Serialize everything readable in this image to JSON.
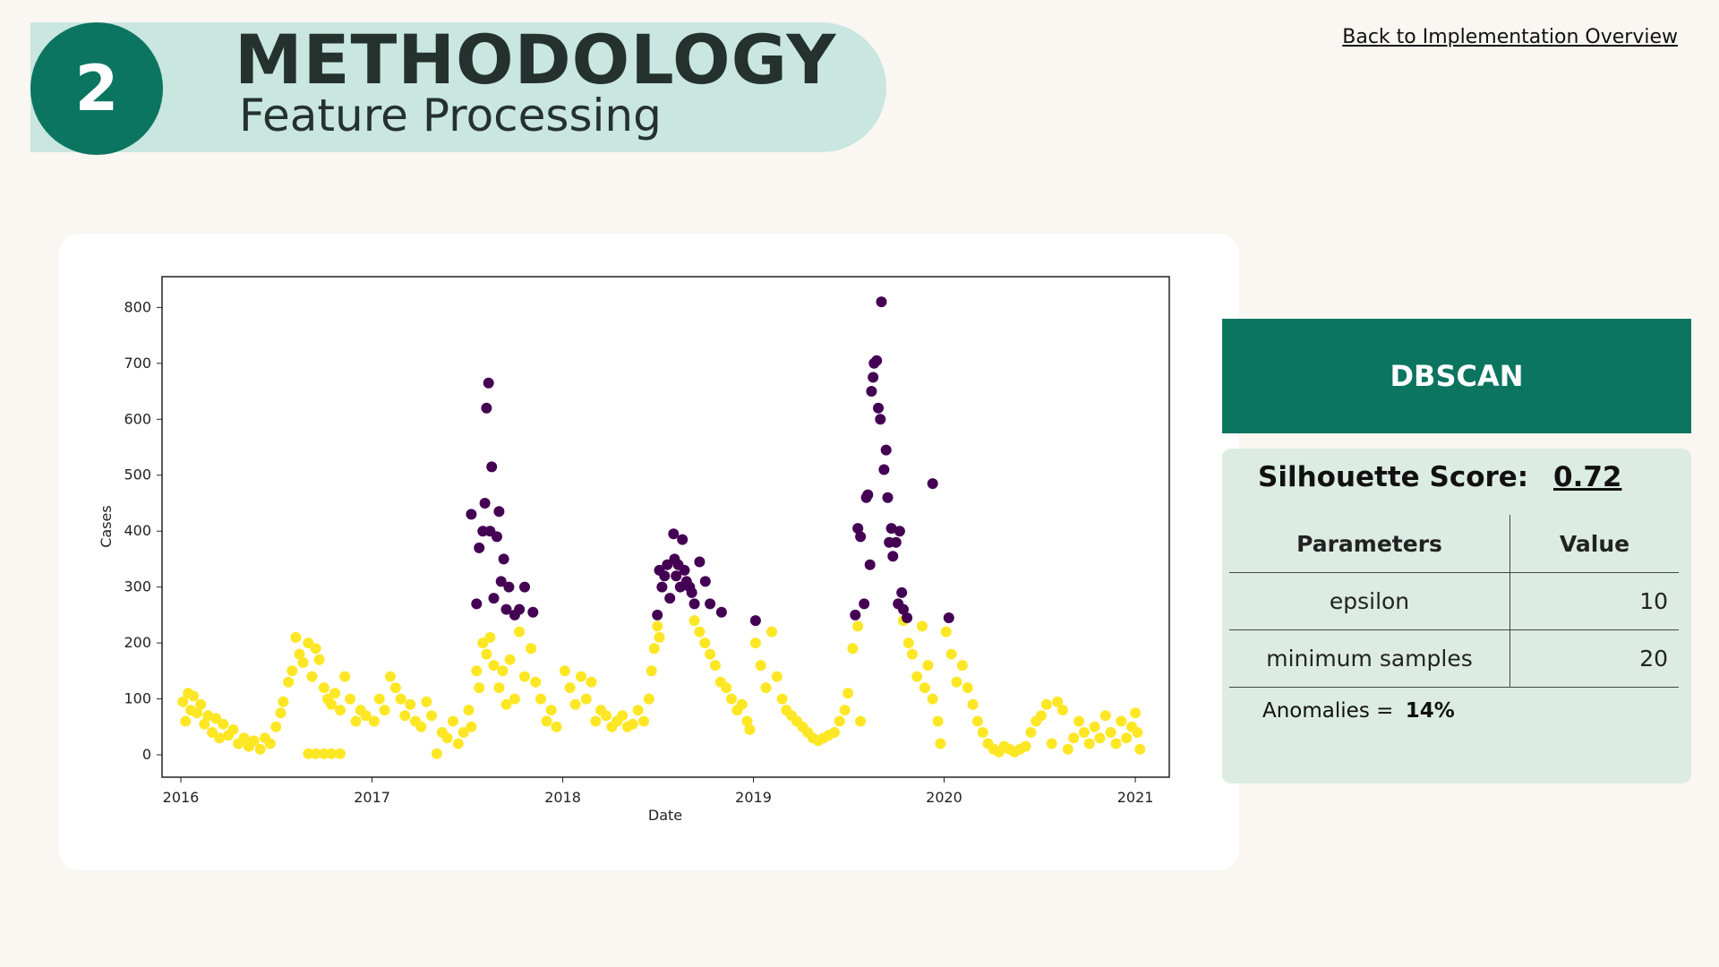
{
  "header": {
    "step_number": "2",
    "title": "METHODOLOGY",
    "subtitle": "Feature Processing",
    "back_link": "Back to Implementation Overview"
  },
  "model_panel": {
    "model_name": "DBSCAN",
    "silhouette_label": "Silhouette Score:",
    "silhouette_value": "0.72",
    "table_headers": [
      "Parameters",
      "Value"
    ],
    "parameters": [
      {
        "name": "epsilon",
        "value": "10"
      },
      {
        "name": "minimum samples",
        "value": "20"
      }
    ],
    "anomalies_label": "Anomalies =",
    "anomalies_value": "14%"
  },
  "colors": {
    "accent": "#0b7560",
    "header_bg": "#c9e6e0",
    "panel_bg": "#dcece2",
    "normal_cluster": "#fde725",
    "anomaly_cluster": "#440154"
  },
  "chart_data": {
    "type": "scatter",
    "title": "",
    "xlabel": "Date",
    "ylabel": "Cases",
    "xlim": [
      "2015-11-26",
      "2021-03-07"
    ],
    "ylim": [
      -40,
      855
    ],
    "x_ticks": [
      "2016",
      "2017",
      "2018",
      "2019",
      "2020",
      "2021"
    ],
    "y_ticks": [
      "0",
      "100",
      "200",
      "300",
      "400",
      "500",
      "600",
      "700",
      "800"
    ],
    "grid": false,
    "legend": "none",
    "series": [
      {
        "label_value": 1,
        "color": "#fde725",
        "points": [
          [
            "2016-01-05",
            95
          ],
          [
            "2016-01-10",
            60
          ],
          [
            "2016-01-15",
            110
          ],
          [
            "2016-01-20",
            80
          ],
          [
            "2016-01-25",
            105
          ],
          [
            "2016-02-01",
            75
          ],
          [
            "2016-02-08",
            90
          ],
          [
            "2016-02-15",
            55
          ],
          [
            "2016-02-22",
            70
          ],
          [
            "2016-03-01",
            40
          ],
          [
            "2016-03-08",
            65
          ],
          [
            "2016-03-15",
            30
          ],
          [
            "2016-03-22",
            55
          ],
          [
            "2016-04-01",
            35
          ],
          [
            "2016-04-10",
            45
          ],
          [
            "2016-04-20",
            20
          ],
          [
            "2016-05-01",
            30
          ],
          [
            "2016-05-10",
            15
          ],
          [
            "2016-05-20",
            25
          ],
          [
            "2016-06-01",
            10
          ],
          [
            "2016-06-10",
            30
          ],
          [
            "2016-06-20",
            20
          ],
          [
            "2016-07-01",
            50
          ],
          [
            "2016-07-10",
            75
          ],
          [
            "2016-07-15",
            95
          ],
          [
            "2016-07-25",
            130
          ],
          [
            "2016-08-01",
            150
          ],
          [
            "2016-08-08",
            210
          ],
          [
            "2016-08-15",
            180
          ],
          [
            "2016-08-22",
            165
          ],
          [
            "2016-09-01",
            200
          ],
          [
            "2016-09-08",
            140
          ],
          [
            "2016-09-15",
            190
          ],
          [
            "2016-09-22",
            170
          ],
          [
            "2016-10-01",
            120
          ],
          [
            "2016-10-08",
            100
          ],
          [
            "2016-10-15",
            90
          ],
          [
            "2016-10-22",
            110
          ],
          [
            "2016-11-01",
            80
          ],
          [
            "2016-11-10",
            140
          ],
          [
            "2016-11-20",
            100
          ],
          [
            "2016-12-01",
            60
          ],
          [
            "2016-12-10",
            80
          ],
          [
            "2016-12-20",
            70
          ],
          [
            "2016-09-01",
            2
          ],
          [
            "2016-09-15",
            2
          ],
          [
            "2016-10-01",
            2
          ],
          [
            "2016-10-15",
            2
          ],
          [
            "2016-11-01",
            2
          ],
          [
            "2017-01-05",
            60
          ],
          [
            "2017-01-15",
            100
          ],
          [
            "2017-01-25",
            80
          ],
          [
            "2017-02-05",
            140
          ],
          [
            "2017-02-15",
            120
          ],
          [
            "2017-02-25",
            100
          ],
          [
            "2017-03-05",
            70
          ],
          [
            "2017-03-15",
            90
          ],
          [
            "2017-03-25",
            60
          ],
          [
            "2017-04-05",
            50
          ],
          [
            "2017-04-15",
            95
          ],
          [
            "2017-04-25",
            70
          ],
          [
            "2017-05-05",
            2
          ],
          [
            "2017-05-15",
            40
          ],
          [
            "2017-05-25",
            30
          ],
          [
            "2017-06-05",
            60
          ],
          [
            "2017-06-15",
            20
          ],
          [
            "2017-06-25",
            40
          ],
          [
            "2017-07-05",
            80
          ],
          [
            "2017-07-10",
            50
          ],
          [
            "2017-07-20",
            150
          ],
          [
            "2017-07-25",
            120
          ],
          [
            "2017-08-01",
            200
          ],
          [
            "2017-08-08",
            180
          ],
          [
            "2017-08-15",
            210
          ],
          [
            "2017-08-22",
            160
          ],
          [
            "2017-09-01",
            120
          ],
          [
            "2017-09-08",
            150
          ],
          [
            "2017-09-15",
            90
          ],
          [
            "2017-09-22",
            170
          ],
          [
            "2017-10-01",
            100
          ],
          [
            "2017-10-10",
            220
          ],
          [
            "2017-10-20",
            140
          ],
          [
            "2017-11-01",
            190
          ],
          [
            "2017-11-10",
            130
          ],
          [
            "2017-11-20",
            100
          ],
          [
            "2017-12-01",
            60
          ],
          [
            "2017-12-10",
            80
          ],
          [
            "2017-12-20",
            50
          ],
          [
            "2018-01-05",
            150
          ],
          [
            "2018-01-15",
            120
          ],
          [
            "2018-01-25",
            90
          ],
          [
            "2018-02-05",
            140
          ],
          [
            "2018-02-15",
            100
          ],
          [
            "2018-02-25",
            130
          ],
          [
            "2018-03-05",
            60
          ],
          [
            "2018-03-15",
            80
          ],
          [
            "2018-03-25",
            70
          ],
          [
            "2018-04-05",
            50
          ],
          [
            "2018-04-15",
            60
          ],
          [
            "2018-04-25",
            70
          ],
          [
            "2018-05-05",
            50
          ],
          [
            "2018-05-15",
            55
          ],
          [
            "2018-05-25",
            80
          ],
          [
            "2018-06-05",
            60
          ],
          [
            "2018-06-15",
            100
          ],
          [
            "2018-06-20",
            150
          ],
          [
            "2018-06-25",
            190
          ],
          [
            "2018-07-01",
            230
          ],
          [
            "2018-07-05",
            210
          ],
          [
            "2018-09-10",
            240
          ],
          [
            "2018-09-20",
            220
          ],
          [
            "2018-09-30",
            200
          ],
          [
            "2018-10-10",
            180
          ],
          [
            "2018-10-20",
            160
          ],
          [
            "2018-10-30",
            130
          ],
          [
            "2018-11-10",
            120
          ],
          [
            "2018-11-20",
            100
          ],
          [
            "2018-12-01",
            80
          ],
          [
            "2018-12-10",
            90
          ],
          [
            "2018-12-20",
            60
          ],
          [
            "2018-12-25",
            45
          ],
          [
            "2019-01-05",
            200
          ],
          [
            "2019-01-15",
            160
          ],
          [
            "2019-01-25",
            120
          ],
          [
            "2019-02-05",
            220
          ],
          [
            "2019-02-15",
            140
          ],
          [
            "2019-02-25",
            100
          ],
          [
            "2019-03-05",
            80
          ],
          [
            "2019-03-15",
            70
          ],
          [
            "2019-03-25",
            60
          ],
          [
            "2019-04-05",
            50
          ],
          [
            "2019-04-15",
            40
          ],
          [
            "2019-04-25",
            30
          ],
          [
            "2019-05-05",
            25
          ],
          [
            "2019-05-15",
            30
          ],
          [
            "2019-05-25",
            35
          ],
          [
            "2019-06-05",
            40
          ],
          [
            "2019-06-15",
            60
          ],
          [
            "2019-06-25",
            80
          ],
          [
            "2019-07-01",
            110
          ],
          [
            "2019-07-10",
            190
          ],
          [
            "2019-07-20",
            230
          ],
          [
            "2019-07-25",
            60
          ],
          [
            "2019-10-15",
            240
          ],
          [
            "2019-10-25",
            200
          ],
          [
            "2019-11-01",
            180
          ],
          [
            "2019-11-10",
            140
          ],
          [
            "2019-11-20",
            230
          ],
          [
            "2019-11-25",
            120
          ],
          [
            "2019-12-01",
            160
          ],
          [
            "2019-12-10",
            100
          ],
          [
            "2019-12-20",
            60
          ],
          [
            "2019-12-25",
            20
          ],
          [
            "2020-01-05",
            220
          ],
          [
            "2020-01-15",
            180
          ],
          [
            "2020-01-25",
            130
          ],
          [
            "2020-02-05",
            160
          ],
          [
            "2020-02-15",
            120
          ],
          [
            "2020-02-25",
            90
          ],
          [
            "2020-03-05",
            60
          ],
          [
            "2020-03-15",
            40
          ],
          [
            "2020-03-25",
            20
          ],
          [
            "2020-04-05",
            10
          ],
          [
            "2020-04-15",
            5
          ],
          [
            "2020-04-25",
            15
          ],
          [
            "2020-05-05",
            10
          ],
          [
            "2020-05-15",
            5
          ],
          [
            "2020-05-25",
            10
          ],
          [
            "2020-06-05",
            15
          ],
          [
            "2020-06-15",
            40
          ],
          [
            "2020-06-25",
            60
          ],
          [
            "2020-07-05",
            70
          ],
          [
            "2020-07-15",
            90
          ],
          [
            "2020-07-25",
            20
          ],
          [
            "2020-08-05",
            95
          ],
          [
            "2020-08-15",
            80
          ],
          [
            "2020-08-25",
            10
          ],
          [
            "2020-09-05",
            30
          ],
          [
            "2020-09-15",
            60
          ],
          [
            "2020-09-25",
            40
          ],
          [
            "2020-10-05",
            20
          ],
          [
            "2020-10-15",
            50
          ],
          [
            "2020-10-25",
            30
          ],
          [
            "2020-11-05",
            70
          ],
          [
            "2020-11-15",
            40
          ],
          [
            "2020-11-25",
            20
          ],
          [
            "2020-12-05",
            60
          ],
          [
            "2020-12-15",
            30
          ],
          [
            "2020-12-25",
            50
          ],
          [
            "2021-01-01",
            75
          ],
          [
            "2021-01-05",
            40
          ],
          [
            "2021-01-10",
            10
          ]
        ]
      },
      {
        "label_value": 0,
        "color": "#440154",
        "points": [
          [
            "2017-07-10",
            430
          ],
          [
            "2017-07-20",
            270
          ],
          [
            "2017-07-25",
            370
          ],
          [
            "2017-08-01",
            400
          ],
          [
            "2017-08-05",
            450
          ],
          [
            "2017-08-08",
            620
          ],
          [
            "2017-08-12",
            665
          ],
          [
            "2017-08-15",
            400
          ],
          [
            "2017-08-18",
            515
          ],
          [
            "2017-08-22",
            280
          ],
          [
            "2017-08-28",
            390
          ],
          [
            "2017-09-01",
            435
          ],
          [
            "2017-09-05",
            310
          ],
          [
            "2017-09-10",
            350
          ],
          [
            "2017-09-15",
            260
          ],
          [
            "2017-09-20",
            300
          ],
          [
            "2017-10-01",
            250
          ],
          [
            "2017-10-10",
            260
          ],
          [
            "2017-10-20",
            300
          ],
          [
            "2017-11-05",
            255
          ],
          [
            "2018-07-01",
            250
          ],
          [
            "2018-07-05",
            330
          ],
          [
            "2018-07-10",
            300
          ],
          [
            "2018-07-15",
            320
          ],
          [
            "2018-07-20",
            340
          ],
          [
            "2018-07-25",
            280
          ],
          [
            "2018-08-01",
            395
          ],
          [
            "2018-08-03",
            350
          ],
          [
            "2018-08-06",
            320
          ],
          [
            "2018-08-10",
            340
          ],
          [
            "2018-08-14",
            300
          ],
          [
            "2018-08-18",
            385
          ],
          [
            "2018-08-22",
            330
          ],
          [
            "2018-08-26",
            310
          ],
          [
            "2018-09-01",
            300
          ],
          [
            "2018-09-05",
            290
          ],
          [
            "2018-09-10",
            270
          ],
          [
            "2018-09-20",
            345
          ],
          [
            "2018-10-01",
            310
          ],
          [
            "2018-10-10",
            270
          ],
          [
            "2018-11-01",
            255
          ],
          [
            "2019-01-05",
            240
          ],
          [
            "2019-07-15",
            250
          ],
          [
            "2019-07-20",
            405
          ],
          [
            "2019-07-25",
            390
          ],
          [
            "2019-08-01",
            270
          ],
          [
            "2019-08-05",
            460
          ],
          [
            "2019-08-08",
            465
          ],
          [
            "2019-08-12",
            340
          ],
          [
            "2019-08-15",
            650
          ],
          [
            "2019-08-18",
            675
          ],
          [
            "2019-08-20",
            700
          ],
          [
            "2019-08-25",
            705
          ],
          [
            "2019-08-28",
            620
          ],
          [
            "2019-09-01",
            600
          ],
          [
            "2019-09-03",
            810
          ],
          [
            "2019-09-08",
            510
          ],
          [
            "2019-09-12",
            545
          ],
          [
            "2019-09-15",
            460
          ],
          [
            "2019-09-18",
            380
          ],
          [
            "2019-09-22",
            405
          ],
          [
            "2019-09-25",
            355
          ],
          [
            "2019-10-01",
            380
          ],
          [
            "2019-10-05",
            270
          ],
          [
            "2019-10-08",
            400
          ],
          [
            "2019-10-12",
            290
          ],
          [
            "2019-10-15",
            260
          ],
          [
            "2019-10-22",
            245
          ],
          [
            "2019-12-10",
            485
          ],
          [
            "2020-01-10",
            245
          ]
        ]
      }
    ]
  }
}
